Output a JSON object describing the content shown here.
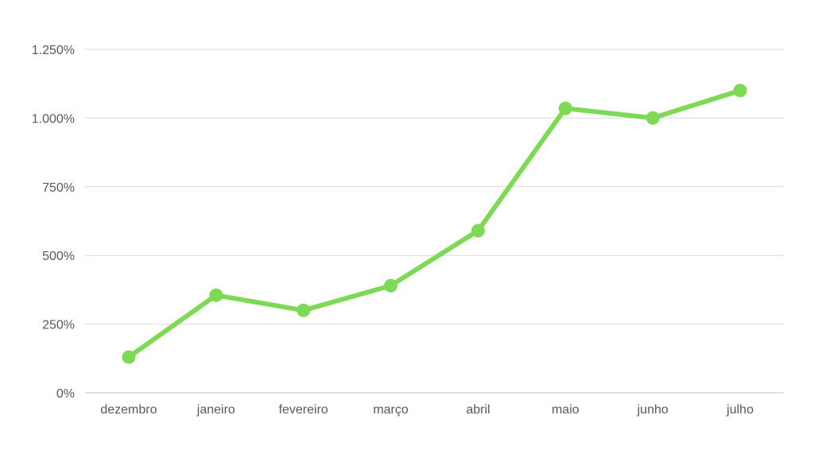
{
  "chart_data": {
    "type": "line",
    "categories": [
      "dezembro",
      "janeiro",
      "fevereiro",
      "março",
      "abril",
      "maio",
      "junho",
      "julho"
    ],
    "series": [
      {
        "values": [
          130,
          355,
          300,
          390,
          590,
          1035,
          1000,
          1100
        ],
        "color": "#7ED957"
      }
    ],
    "ylim": [
      0,
      1250
    ],
    "yticks": [
      0,
      250,
      500,
      750,
      1000,
      1250
    ],
    "ytick_labels": [
      "0%",
      "250%",
      "500%",
      "750%",
      "1.000%",
      "1.250%"
    ],
    "grid": true,
    "legend": "none",
    "colors": {
      "line": "#7ED957",
      "grid": "#d9d9d9",
      "axis": "#bfbfbf",
      "label": "#595959"
    }
  }
}
